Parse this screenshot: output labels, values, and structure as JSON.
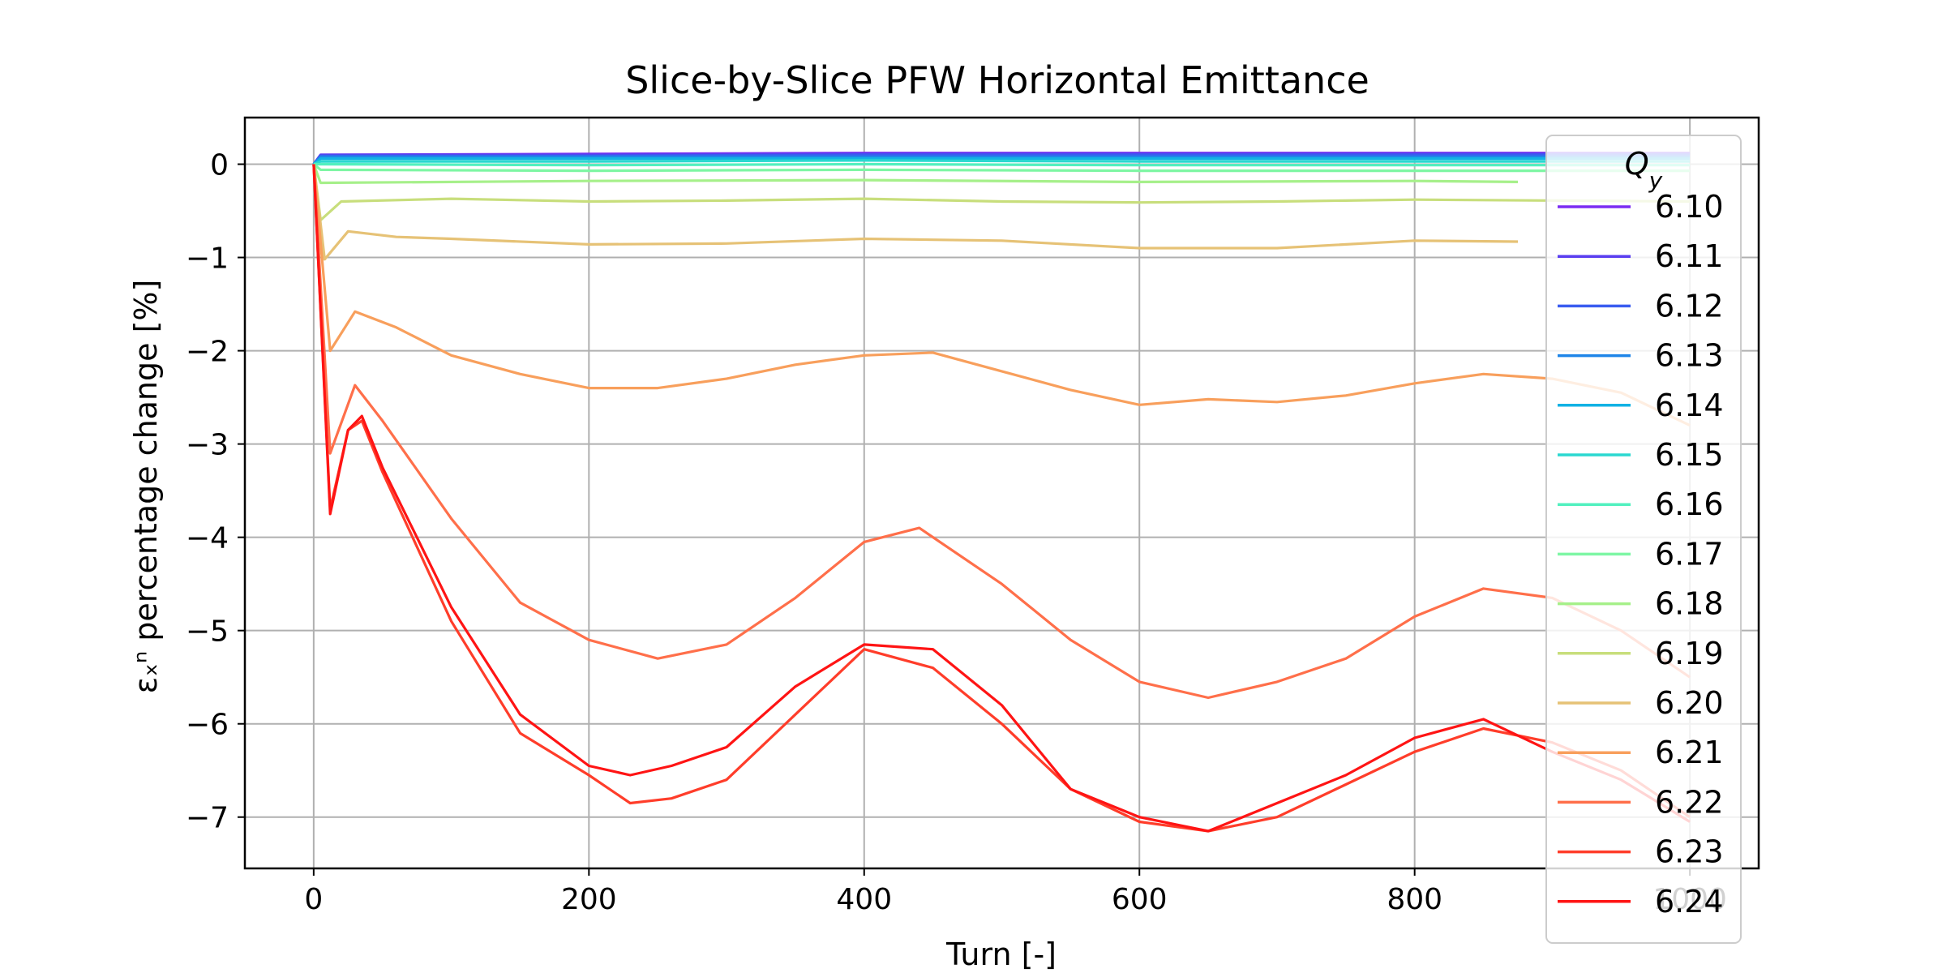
{
  "chart_data": {
    "type": "line",
    "title": "Slice-by-Slice PFW Horizontal Emittance",
    "xlabel": "Turn [-]",
    "ylabel": "εₓⁿ percentage change [%]",
    "xlim": [
      -50,
      1050
    ],
    "ylim": [
      -7.55,
      0.5
    ],
    "xticks": [
      0,
      200,
      400,
      600,
      800,
      1000
    ],
    "xtick_labels": [
      "0",
      "200",
      "400",
      "600",
      "800",
      "1000"
    ],
    "yticks": [
      0,
      -1,
      -2,
      -3,
      -4,
      -5,
      -6,
      -7
    ],
    "ytick_labels": [
      "0",
      "−1",
      "−2",
      "−3",
      "−4",
      "−5",
      "−6",
      "−7"
    ],
    "grid": true,
    "legend": {
      "title": "Qy",
      "placement": "right, overlapping plot edge"
    },
    "series": [
      {
        "name": "6.10",
        "color": "#7b2df2",
        "points": [
          [
            0,
            0
          ],
          [
            5,
            0.1
          ],
          [
            200,
            0.11
          ],
          [
            400,
            0.12
          ],
          [
            600,
            0.12
          ],
          [
            800,
            0.12
          ],
          [
            1000,
            0.12
          ]
        ]
      },
      {
        "name": "6.11",
        "color": "#5a3ef0",
        "points": [
          [
            0,
            0
          ],
          [
            5,
            0.1
          ],
          [
            200,
            0.1
          ],
          [
            400,
            0.11
          ],
          [
            600,
            0.11
          ],
          [
            800,
            0.11
          ],
          [
            1000,
            0.11
          ]
        ]
      },
      {
        "name": "6.12",
        "color": "#3a5cf0",
        "points": [
          [
            0,
            0
          ],
          [
            5,
            0.09
          ],
          [
            200,
            0.09
          ],
          [
            400,
            0.1
          ],
          [
            600,
            0.1
          ],
          [
            800,
            0.1
          ],
          [
            1000,
            0.1
          ]
        ]
      },
      {
        "name": "6.13",
        "color": "#1f85e8",
        "points": [
          [
            0,
            0
          ],
          [
            5,
            0.08
          ],
          [
            200,
            0.08
          ],
          [
            400,
            0.08
          ],
          [
            600,
            0.08
          ],
          [
            800,
            0.08
          ],
          [
            1000,
            0.08
          ]
        ]
      },
      {
        "name": "6.14",
        "color": "#12b2e4",
        "points": [
          [
            0,
            0
          ],
          [
            5,
            0.06
          ],
          [
            200,
            0.06
          ],
          [
            400,
            0.06
          ],
          [
            600,
            0.06
          ],
          [
            800,
            0.06
          ],
          [
            1000,
            0.06
          ]
        ]
      },
      {
        "name": "6.15",
        "color": "#2ad8d0",
        "points": [
          [
            0,
            0
          ],
          [
            5,
            0.03
          ],
          [
            200,
            0.03
          ],
          [
            400,
            0.04
          ],
          [
            600,
            0.03
          ],
          [
            800,
            0.03
          ],
          [
            1000,
            0.03
          ]
        ]
      },
      {
        "name": "6.16",
        "color": "#52f0bf",
        "points": [
          [
            0,
            0
          ],
          [
            5,
            0.0
          ],
          [
            200,
            -0.01
          ],
          [
            400,
            0.0
          ],
          [
            600,
            -0.01
          ],
          [
            800,
            -0.01
          ],
          [
            1000,
            -0.01
          ]
        ]
      },
      {
        "name": "6.17",
        "color": "#7ef6a4",
        "points": [
          [
            0,
            0
          ],
          [
            5,
            -0.06
          ],
          [
            200,
            -0.07
          ],
          [
            400,
            -0.06
          ],
          [
            600,
            -0.07
          ],
          [
            800,
            -0.07
          ],
          [
            1000,
            -0.07
          ]
        ]
      },
      {
        "name": "6.18",
        "color": "#a6f08a",
        "points": [
          [
            0,
            0
          ],
          [
            5,
            -0.2
          ],
          [
            200,
            -0.18
          ],
          [
            400,
            -0.17
          ],
          [
            600,
            -0.19
          ],
          [
            800,
            -0.18
          ],
          [
            875,
            -0.19
          ]
        ]
      },
      {
        "name": "6.19",
        "color": "#c8de7c",
        "points": [
          [
            0,
            0
          ],
          [
            5,
            -0.6
          ],
          [
            20,
            -0.4
          ],
          [
            100,
            -0.37
          ],
          [
            200,
            -0.4
          ],
          [
            300,
            -0.39
          ],
          [
            400,
            -0.37
          ],
          [
            500,
            -0.4
          ],
          [
            600,
            -0.41
          ],
          [
            700,
            -0.4
          ],
          [
            800,
            -0.38
          ],
          [
            1000,
            -0.4
          ]
        ]
      },
      {
        "name": "6.20",
        "color": "#e6c276",
        "points": [
          [
            0,
            0
          ],
          [
            8,
            -1.02
          ],
          [
            25,
            -0.72
          ],
          [
            60,
            -0.78
          ],
          [
            100,
            -0.8
          ],
          [
            200,
            -0.86
          ],
          [
            300,
            -0.85
          ],
          [
            400,
            -0.8
          ],
          [
            500,
            -0.82
          ],
          [
            600,
            -0.9
          ],
          [
            700,
            -0.9
          ],
          [
            800,
            -0.82
          ],
          [
            875,
            -0.83
          ]
        ]
      },
      {
        "name": "6.21",
        "color": "#f89f5c",
        "points": [
          [
            0,
            0
          ],
          [
            12,
            -2.0
          ],
          [
            30,
            -1.58
          ],
          [
            60,
            -1.75
          ],
          [
            100,
            -2.05
          ],
          [
            150,
            -2.25
          ],
          [
            200,
            -2.4
          ],
          [
            250,
            -2.4
          ],
          [
            300,
            -2.3
          ],
          [
            350,
            -2.15
          ],
          [
            400,
            -2.05
          ],
          [
            450,
            -2.02
          ],
          [
            500,
            -2.22
          ],
          [
            550,
            -2.42
          ],
          [
            600,
            -2.58
          ],
          [
            650,
            -2.52
          ],
          [
            700,
            -2.55
          ],
          [
            750,
            -2.48
          ],
          [
            800,
            -2.35
          ],
          [
            850,
            -2.25
          ],
          [
            900,
            -2.3
          ],
          [
            950,
            -2.45
          ],
          [
            1000,
            -2.8
          ]
        ]
      },
      {
        "name": "6.22",
        "color": "#ff6f4a",
        "points": [
          [
            0,
            0
          ],
          [
            12,
            -3.1
          ],
          [
            30,
            -2.37
          ],
          [
            50,
            -2.75
          ],
          [
            100,
            -3.8
          ],
          [
            150,
            -4.7
          ],
          [
            200,
            -5.1
          ],
          [
            250,
            -5.3
          ],
          [
            300,
            -5.15
          ],
          [
            350,
            -4.65
          ],
          [
            400,
            -4.05
          ],
          [
            440,
            -3.9
          ],
          [
            500,
            -4.5
          ],
          [
            550,
            -5.1
          ],
          [
            600,
            -5.55
          ],
          [
            650,
            -5.72
          ],
          [
            700,
            -5.55
          ],
          [
            750,
            -5.3
          ],
          [
            800,
            -4.85
          ],
          [
            850,
            -4.55
          ],
          [
            900,
            -4.65
          ],
          [
            950,
            -5.0
          ],
          [
            1000,
            -5.5
          ]
        ]
      },
      {
        "name": "6.23",
        "color": "#ff3d2a",
        "points": [
          [
            0,
            0
          ],
          [
            12,
            -3.7
          ],
          [
            25,
            -2.85
          ],
          [
            35,
            -2.75
          ],
          [
            50,
            -3.3
          ],
          [
            100,
            -4.9
          ],
          [
            150,
            -6.1
          ],
          [
            200,
            -6.55
          ],
          [
            230,
            -6.85
          ],
          [
            260,
            -6.8
          ],
          [
            300,
            -6.6
          ],
          [
            350,
            -5.9
          ],
          [
            400,
            -5.2
          ],
          [
            450,
            -5.4
          ],
          [
            500,
            -6.0
          ],
          [
            550,
            -6.7
          ],
          [
            600,
            -7.05
          ],
          [
            650,
            -7.15
          ],
          [
            700,
            -7.0
          ],
          [
            750,
            -6.65
          ],
          [
            800,
            -6.3
          ],
          [
            850,
            -6.05
          ],
          [
            900,
            -6.2
          ],
          [
            950,
            -6.5
          ],
          [
            1000,
            -7.0
          ]
        ]
      },
      {
        "name": "6.24",
        "color": "#ff1414",
        "points": [
          [
            0,
            0
          ],
          [
            12,
            -3.75
          ],
          [
            25,
            -2.85
          ],
          [
            35,
            -2.7
          ],
          [
            50,
            -3.25
          ],
          [
            100,
            -4.75
          ],
          [
            150,
            -5.9
          ],
          [
            200,
            -6.45
          ],
          [
            230,
            -6.55
          ],
          [
            260,
            -6.45
          ],
          [
            300,
            -6.25
          ],
          [
            350,
            -5.6
          ],
          [
            400,
            -5.15
          ],
          [
            450,
            -5.2
          ],
          [
            500,
            -5.8
          ],
          [
            550,
            -6.7
          ],
          [
            600,
            -7.0
          ],
          [
            650,
            -7.15
          ],
          [
            700,
            -6.85
          ],
          [
            750,
            -6.55
          ],
          [
            800,
            -6.15
          ],
          [
            850,
            -5.95
          ],
          [
            900,
            -6.3
          ],
          [
            950,
            -6.6
          ],
          [
            1000,
            -7.05
          ]
        ]
      }
    ]
  }
}
